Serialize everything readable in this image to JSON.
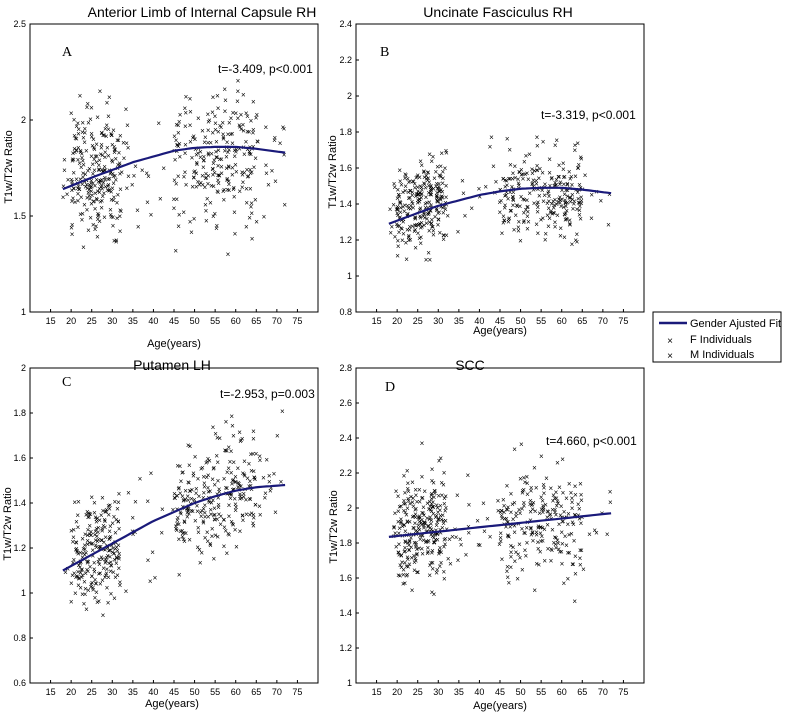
{
  "figure": {
    "legend": {
      "fit_label": "Gender Ajusted Fit",
      "f_label": "F Individuals",
      "m_label": "M Individuals"
    },
    "colors": {
      "fit": "#1a1a7a",
      "female": "#7f8ff0",
      "male": "#f08a8a",
      "axis": "#000000"
    }
  },
  "chart_data": [
    {
      "type": "scatter",
      "letter": "A",
      "title": "Anterior Limb of Internal Capsule RH",
      "xlabel": "Age(years)",
      "ylabel": "T1w/T2w Ratio",
      "stat": "t=-3.409, p<0.001",
      "xlim": [
        10,
        80
      ],
      "ylim": [
        1,
        2.5
      ],
      "xticks": [
        "15",
        "20",
        "25",
        "30",
        "35",
        "40",
        "45",
        "50",
        "55",
        "60",
        "65",
        "70",
        "75"
      ],
      "yticks": [
        "1",
        "1.5",
        "2",
        "2.5"
      ],
      "fit": {
        "x": [
          18,
          25,
          30,
          35,
          40,
          45,
          50,
          55,
          60,
          65,
          72
        ],
        "y": [
          1.64,
          1.7,
          1.74,
          1.78,
          1.81,
          1.84,
          1.855,
          1.86,
          1.86,
          1.85,
          1.83
        ]
      },
      "scatter": {
        "x_range": [
          18,
          72
        ],
        "y_center": 1.75,
        "y_spread": 0.3,
        "seed": 11
      }
    },
    {
      "type": "scatter",
      "letter": "B",
      "title": "Uncinate Fasciculus RH",
      "xlabel": "Age(years)",
      "ylabel": "T1w/T2w Ratio",
      "stat": "t=-3.319, p<0.001",
      "xlim": [
        10,
        80
      ],
      "ylim": [
        0.8,
        2.4
      ],
      "xticks": [
        "15",
        "20",
        "25",
        "30",
        "35",
        "40",
        "45",
        "50",
        "55",
        "60",
        "65",
        "70",
        "75"
      ],
      "yticks": [
        "0.8",
        "1",
        "1.2",
        "1.4",
        "1.6",
        "1.8",
        "2",
        "2.2",
        "2.4"
      ],
      "fit": {
        "x": [
          18,
          25,
          30,
          35,
          40,
          45,
          50,
          55,
          60,
          65,
          72
        ],
        "y": [
          1.29,
          1.35,
          1.39,
          1.42,
          1.45,
          1.47,
          1.485,
          1.49,
          1.49,
          1.48,
          1.46
        ]
      },
      "scatter": {
        "x_range": [
          18,
          72
        ],
        "y_center": 1.42,
        "y_spread": 0.22,
        "seed": 23
      }
    },
    {
      "type": "scatter",
      "letter": "C",
      "title": "Putamen LH",
      "xlabel": "Age(years)",
      "ylabel": "T1w/T2w Ratio",
      "stat": "t=-2.953, p=0.003",
      "xlim": [
        10,
        80
      ],
      "ylim": [
        0.6,
        2
      ],
      "xticks": [
        "15",
        "20",
        "25",
        "30",
        "35",
        "40",
        "45",
        "50",
        "55",
        "60",
        "65",
        "70",
        "75"
      ],
      "yticks": [
        "0.6",
        "0.8",
        "1",
        "1.2",
        "1.4",
        "1.6",
        "1.8",
        "2"
      ],
      "fit": {
        "x": [
          18,
          25,
          30,
          35,
          40,
          45,
          50,
          55,
          60,
          65,
          72
        ],
        "y": [
          1.1,
          1.17,
          1.22,
          1.27,
          1.32,
          1.36,
          1.4,
          1.43,
          1.455,
          1.47,
          1.48
        ]
      },
      "scatter": {
        "x_range": [
          18,
          72
        ],
        "y_trend": true,
        "y_spread": 0.22,
        "seed": 37
      }
    },
    {
      "type": "scatter",
      "letter": "D",
      "title": "SCC",
      "xlabel": "Age(years)",
      "ylabel": "T1w/T2w Ratio",
      "stat": "t=4.660, p<0.001",
      "xlim": [
        10,
        80
      ],
      "ylim": [
        1,
        2.8
      ],
      "xticks": [
        "15",
        "20",
        "25",
        "30",
        "35",
        "40",
        "45",
        "50",
        "55",
        "60",
        "65",
        "70",
        "75"
      ],
      "yticks": [
        "1",
        "1.2",
        "1.4",
        "1.6",
        "1.8",
        "2",
        "2.2",
        "2.4",
        "2.6",
        "2.8"
      ],
      "fit": {
        "x": [
          18,
          72
        ],
        "y": [
          1.835,
          1.97
        ]
      },
      "scatter": {
        "x_range": [
          18,
          72
        ],
        "y_center": 1.92,
        "y_spread": 0.28,
        "seed": 53
      }
    }
  ]
}
